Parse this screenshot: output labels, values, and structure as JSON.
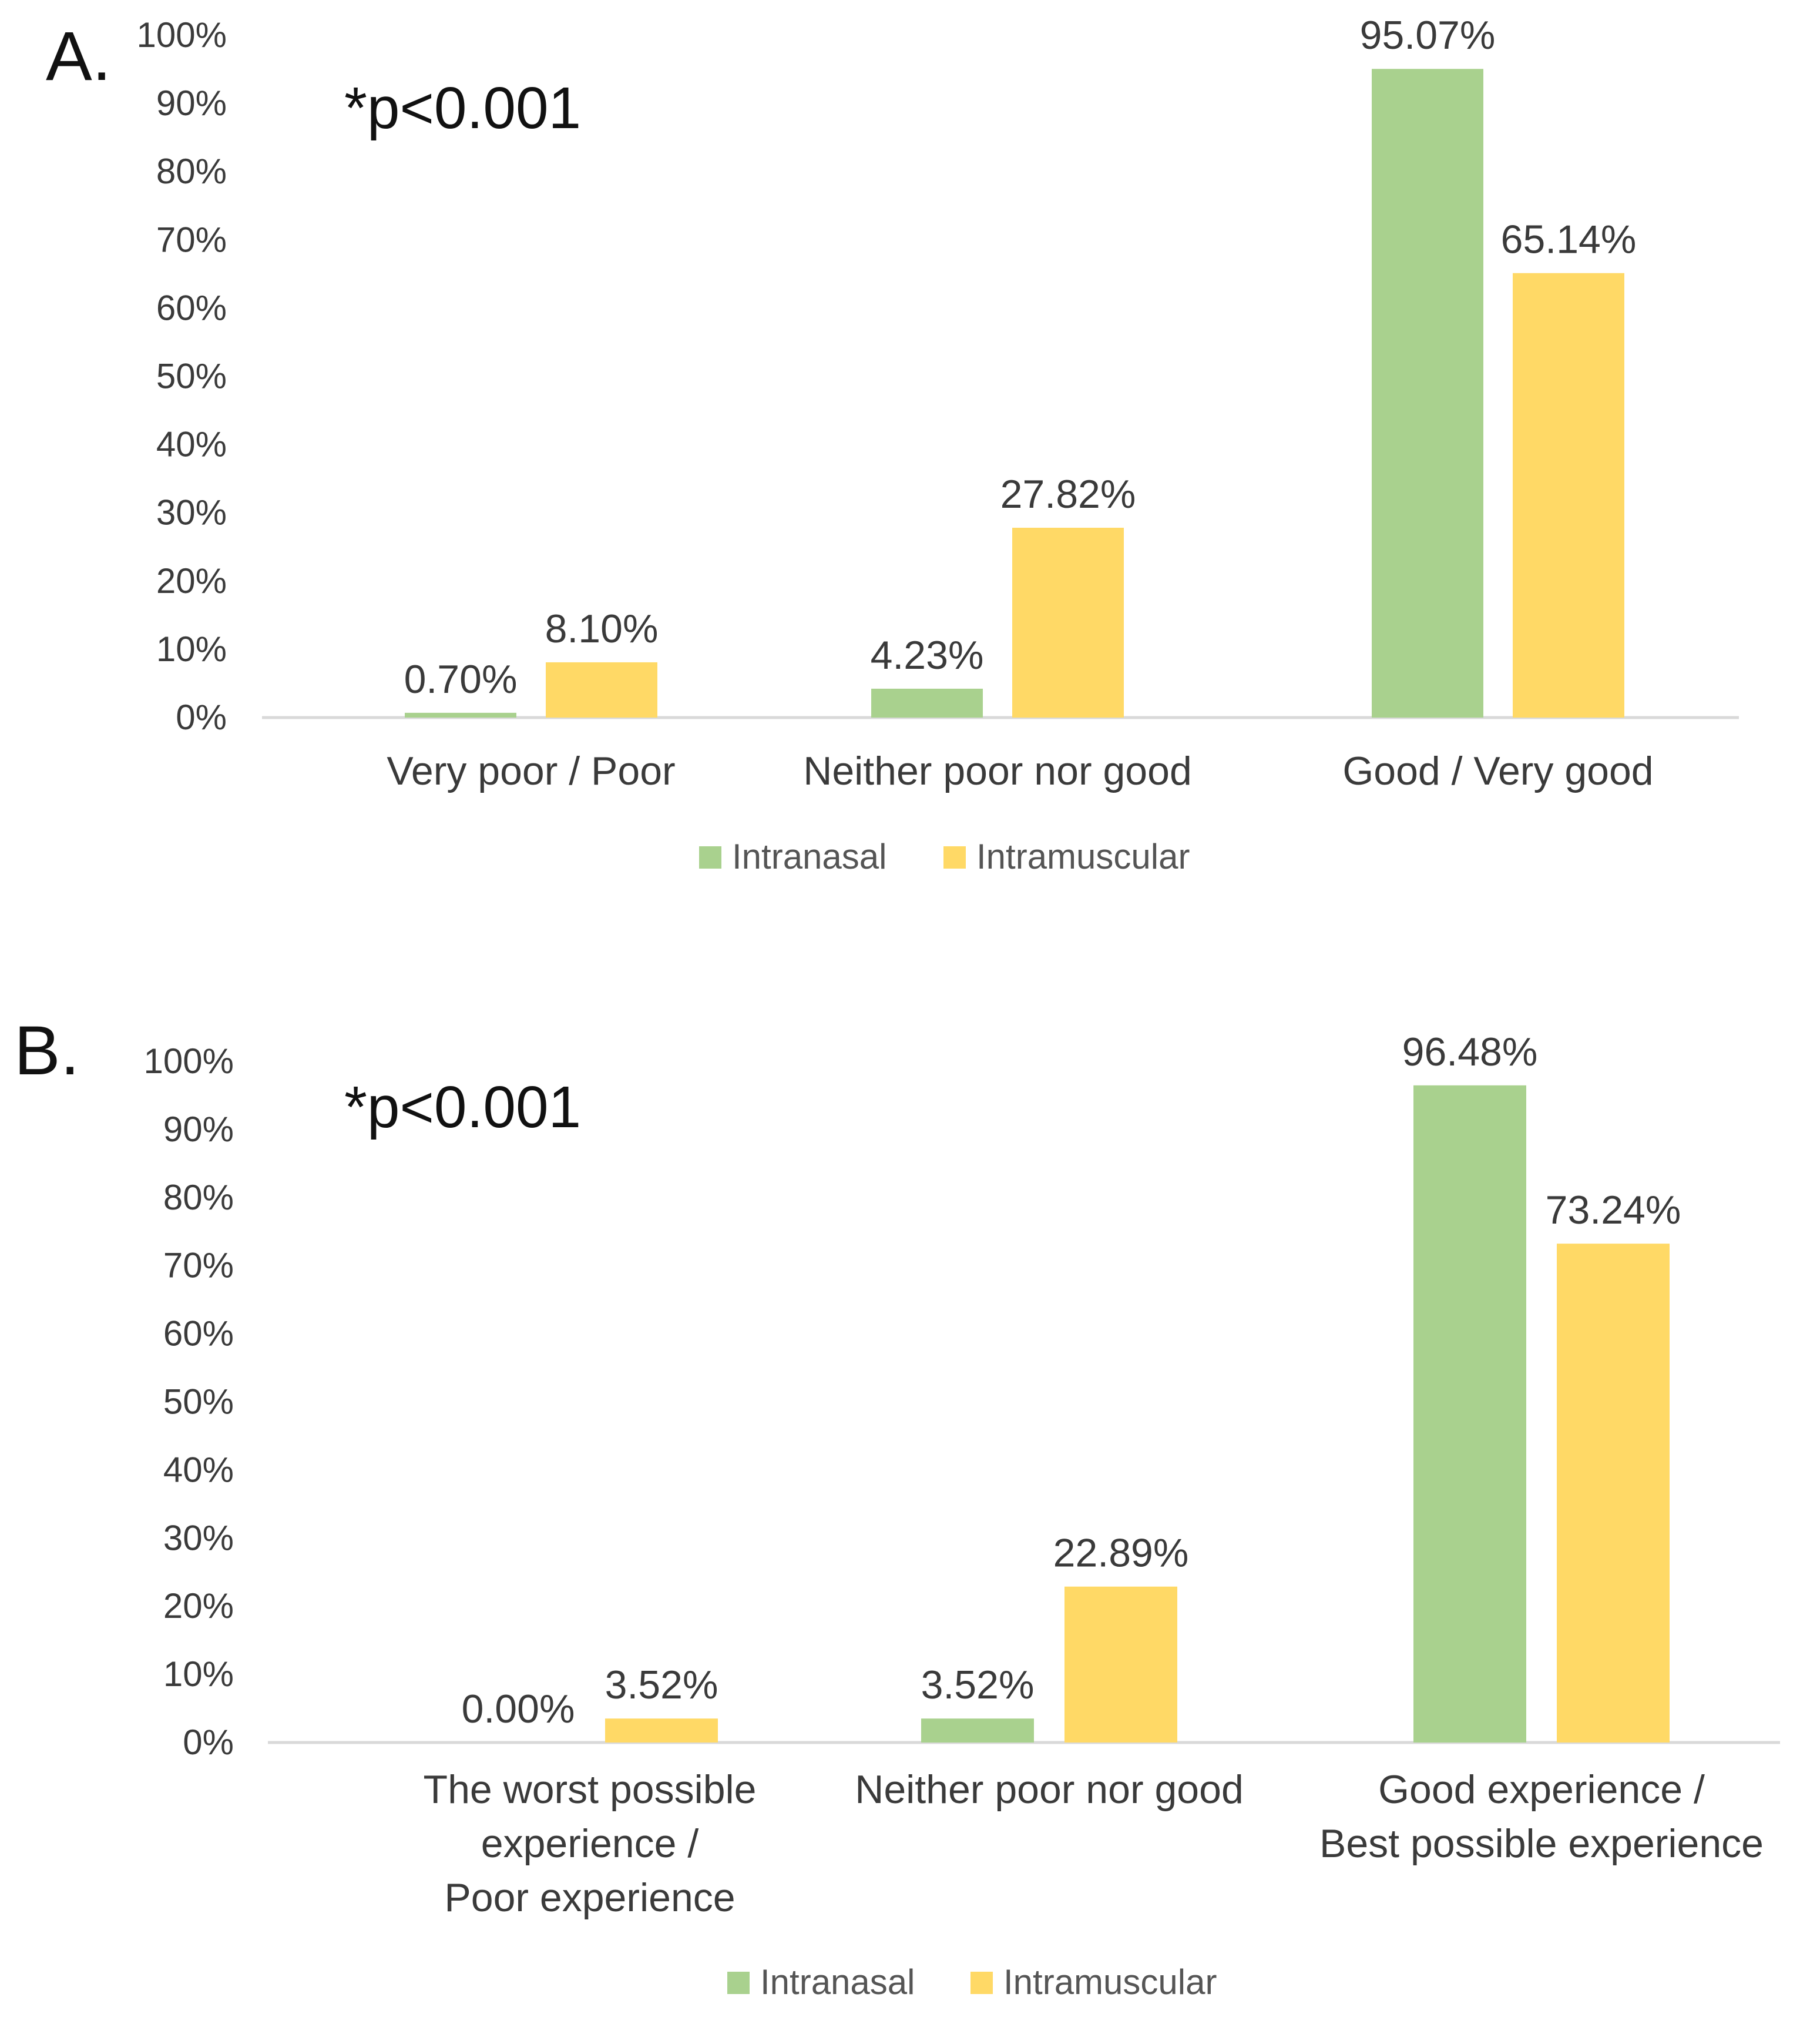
{
  "chart_data": [
    {
      "type": "bar",
      "panel": "A.",
      "annotation": "*p<0.001",
      "categories": [
        "Very poor / Poor",
        "Neither poor nor good",
        "Good / Very good"
      ],
      "series": [
        {
          "name": "Intranasal",
          "color": "#A9D18E",
          "values": [
            0.7,
            4.23,
            95.07
          ],
          "labels": [
            "0.70%",
            "4.23%",
            "95.07%"
          ]
        },
        {
          "name": "Intramuscular",
          "color": "#FFD966",
          "values": [
            8.1,
            27.82,
            65.14
          ],
          "labels": [
            "8.10%",
            "27.82%",
            "65.14%"
          ]
        }
      ],
      "yticks": [
        "0%",
        "10%",
        "20%",
        "30%",
        "40%",
        "50%",
        "60%",
        "70%",
        "80%",
        "90%",
        "100%"
      ],
      "ylim": [
        0,
        100
      ],
      "legend": "bottom",
      "grid": false
    },
    {
      "type": "bar",
      "panel": "B.",
      "annotation": "*p<0.001",
      "categories": [
        [
          "The worst possible",
          "experience /",
          "Poor experience"
        ],
        [
          "Neither poor nor good"
        ],
        [
          "Good experience /",
          "Best possible experience"
        ]
      ],
      "series": [
        {
          "name": "Intranasal",
          "color": "#A9D18E",
          "values": [
            0.0,
            3.52,
            96.48
          ],
          "labels": [
            "0.00%",
            "3.52%",
            "96.48%"
          ]
        },
        {
          "name": "Intramuscular",
          "color": "#FFD966",
          "values": [
            3.52,
            22.89,
            73.24
          ],
          "labels": [
            "3.52%",
            "22.89%",
            "73.24%"
          ]
        }
      ],
      "yticks": [
        "0%",
        "10%",
        "20%",
        "30%",
        "40%",
        "50%",
        "60%",
        "70%",
        "80%",
        "90%",
        "100%"
      ],
      "ylim": [
        0,
        100
      ],
      "legend": "bottom",
      "grid": false
    }
  ]
}
